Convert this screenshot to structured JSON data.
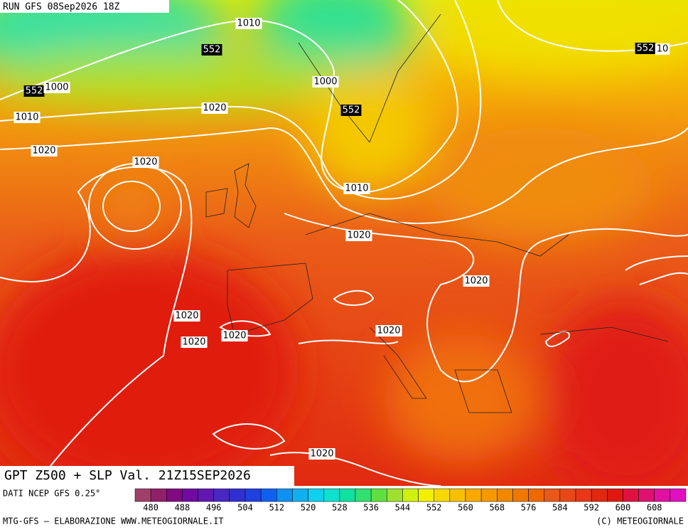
{
  "header": {
    "run": "RUN GFS 08Sep2026 18Z"
  },
  "map": {
    "contour_labels": [
      "1010",
      "552",
      "552",
      "10",
      "552",
      "1000",
      "1000",
      "552",
      "1010",
      "1020",
      "1020",
      "1020",
      "1010",
      "1020",
      "1020",
      "1020",
      "1020",
      "1020",
      "1020",
      "1020"
    ]
  },
  "footer": {
    "title": "GPT Z500 + SLP Val. 21Z15SEP2026",
    "source": "DATI NCEP GFS 0.25°",
    "credit": "MTG-GFS — ELABORAZIONE WWW.METEOGIORNALE.IT",
    "copyright": "(C) METEOGIORNALE"
  },
  "colorbar": {
    "labels": [
      480,
      488,
      496,
      504,
      512,
      520,
      528,
      536,
      544,
      552,
      560,
      568,
      576,
      584,
      592,
      600,
      608
    ],
    "colors": [
      "#a0406a",
      "#90206a",
      "#800a80",
      "#700aa0",
      "#6018b0",
      "#4828c0",
      "#3030d0",
      "#2040e0",
      "#1060f0",
      "#1090f0",
      "#10b0f0",
      "#10d0f0",
      "#10e0d0",
      "#10e0a0",
      "#30e070",
      "#60e040",
      "#a0e030",
      "#d0f010",
      "#f0f000",
      "#f8d800",
      "#f8c000",
      "#f8a800",
      "#f89800",
      "#f08800",
      "#f07800",
      "#f06800",
      "#e85818",
      "#e84818",
      "#e83818",
      "#e02810",
      "#e01810",
      "#e01040",
      "#e01070",
      "#e010a0",
      "#e010c0"
    ]
  }
}
